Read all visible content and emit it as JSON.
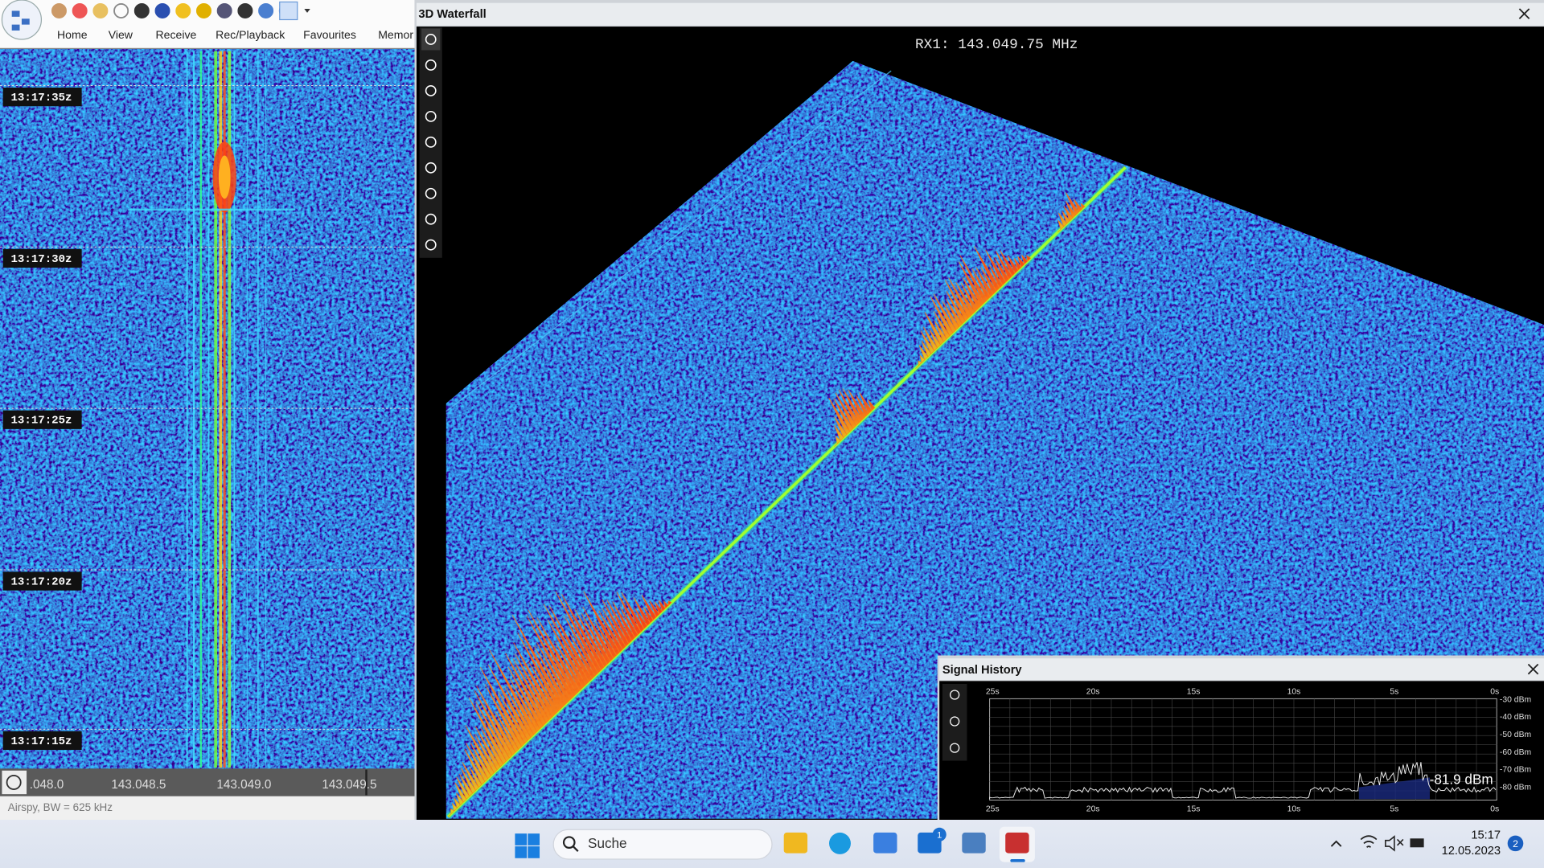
{
  "toolbar": {
    "menu": [
      "Home",
      "View",
      "Receive",
      "Rec/Playback",
      "Favourites",
      "Memor"
    ]
  },
  "left_waterfall": {
    "time_labels": [
      "13:17:35z",
      "13:17:30z",
      "13:17:25z",
      "13:17:20z",
      "13:17:15z"
    ],
    "frequency_labels": [
      ".048.0",
      "143.048.5",
      "143.049.0",
      "143.049.5"
    ],
    "status": "Airspy, BW = 625 kHz"
  },
  "waterfall_3d": {
    "title": "3D Waterfall",
    "frequency": "RX1: 143.049.75 MHz"
  },
  "signal_history": {
    "title": "Signal History",
    "time_labels": [
      "25s",
      "20s",
      "15s",
      "10s",
      "5s",
      "0s"
    ],
    "level_labels": [
      "-30 dBm",
      "-40 dBm",
      "-50 dBm",
      "-60 dBm",
      "-70 dBm",
      "-80 dBm"
    ],
    "reading": "-81.9 dBm"
  },
  "taskbar": {
    "search": "Suche",
    "mail_badge": "1",
    "time": "15:17",
    "date": "12.05.2023",
    "notification_badge": "2"
  }
}
